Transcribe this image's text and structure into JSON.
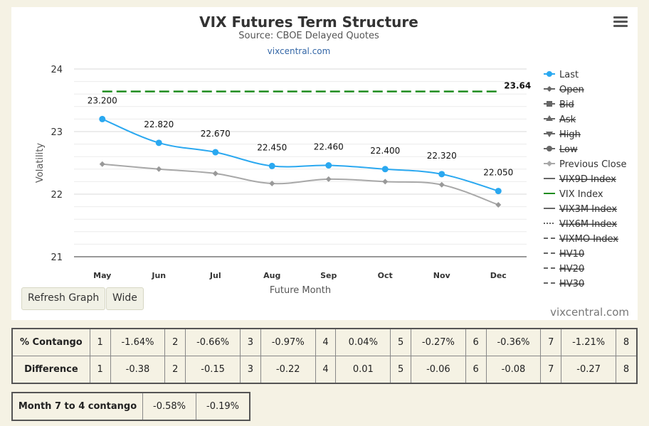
{
  "chart_data": {
    "type": "line",
    "title": "VIX Futures Term Structure",
    "subtitle": "Source: CBOE Delayed Quotes",
    "credit_top": "vixcentral.com",
    "credit_bottom": "vixcentral.com",
    "xlabel": "Future Month",
    "ylabel": "Volatility",
    "categories": [
      "May",
      "Jun",
      "Jul",
      "Aug",
      "Sep",
      "Oct",
      "Nov",
      "Dec"
    ],
    "yticks": [
      "24",
      "23",
      "22",
      "21"
    ],
    "ylim": [
      21,
      24
    ],
    "grid": true,
    "legend_position": "right",
    "series": [
      {
        "name": "Last",
        "color": "#2aa8f0",
        "values": [
          23.2,
          22.82,
          22.67,
          22.45,
          22.46,
          22.4,
          22.32,
          22.05
        ],
        "labels": [
          "23.200",
          "22.820",
          "22.670",
          "22.450",
          "22.460",
          "22.400",
          "22.320",
          "22.050"
        ]
      },
      {
        "name": "Previous Close",
        "color": "#a8a8a8",
        "values": [
          22.48,
          22.4,
          22.33,
          22.17,
          22.24,
          22.2,
          22.15,
          21.83
        ]
      },
      {
        "name": "VIX Index",
        "color": "#1e8c1e",
        "value": 23.64,
        "label": "23.64"
      }
    ],
    "legend": [
      {
        "name": "Last",
        "active": true,
        "symbol": "circle",
        "color": "#2aa8f0"
      },
      {
        "name": "Open",
        "active": false,
        "symbol": "diamond",
        "color": "#666666"
      },
      {
        "name": "Bid",
        "active": false,
        "symbol": "square",
        "color": "#666666"
      },
      {
        "name": "Ask",
        "active": false,
        "symbol": "triangle",
        "color": "#666666"
      },
      {
        "name": "High",
        "active": false,
        "symbol": "triangle-down",
        "color": "#666666"
      },
      {
        "name": "Low",
        "active": false,
        "symbol": "circle",
        "color": "#666666"
      },
      {
        "name": "Previous Close",
        "active": true,
        "symbol": "diamond",
        "color": "#a8a8a8"
      },
      {
        "name": "VIX9D Index",
        "active": false,
        "symbol": "line",
        "color": "#666666"
      },
      {
        "name": "VIX Index",
        "active": true,
        "symbol": "line",
        "color": "#1e8c1e"
      },
      {
        "name": "VIX3M Index",
        "active": false,
        "symbol": "line",
        "color": "#666666"
      },
      {
        "name": "VIX6M Index",
        "active": false,
        "symbol": "dotted",
        "color": "#666666"
      },
      {
        "name": "VIXMO Index",
        "active": false,
        "symbol": "dashed",
        "color": "#666666"
      },
      {
        "name": "HV10",
        "active": false,
        "symbol": "dashed",
        "color": "#666666"
      },
      {
        "name": "HV20",
        "active": false,
        "symbol": "dashed",
        "color": "#666666"
      },
      {
        "name": "HV30",
        "active": false,
        "symbol": "dashed",
        "color": "#666666"
      }
    ]
  },
  "buttons": {
    "refresh": "Refresh Graph",
    "wide": "Wide"
  },
  "contango_table": {
    "rows": [
      {
        "label": "% Contango",
        "cells": [
          "1",
          "-1.64%",
          "2",
          "-0.66%",
          "3",
          "-0.97%",
          "4",
          "0.04%",
          "5",
          "-0.27%",
          "6",
          "-0.36%",
          "7",
          "-1.21%",
          "8"
        ]
      },
      {
        "label": "Difference",
        "cells": [
          "1",
          "-0.38",
          "2",
          "-0.15",
          "3",
          "-0.22",
          "4",
          "0.01",
          "5",
          "-0.06",
          "6",
          "-0.08",
          "7",
          "-0.27",
          "8"
        ]
      }
    ]
  },
  "month_table": {
    "label": "Month 7 to 4 contango",
    "values": [
      "-0.58%",
      "-0.19%"
    ]
  }
}
